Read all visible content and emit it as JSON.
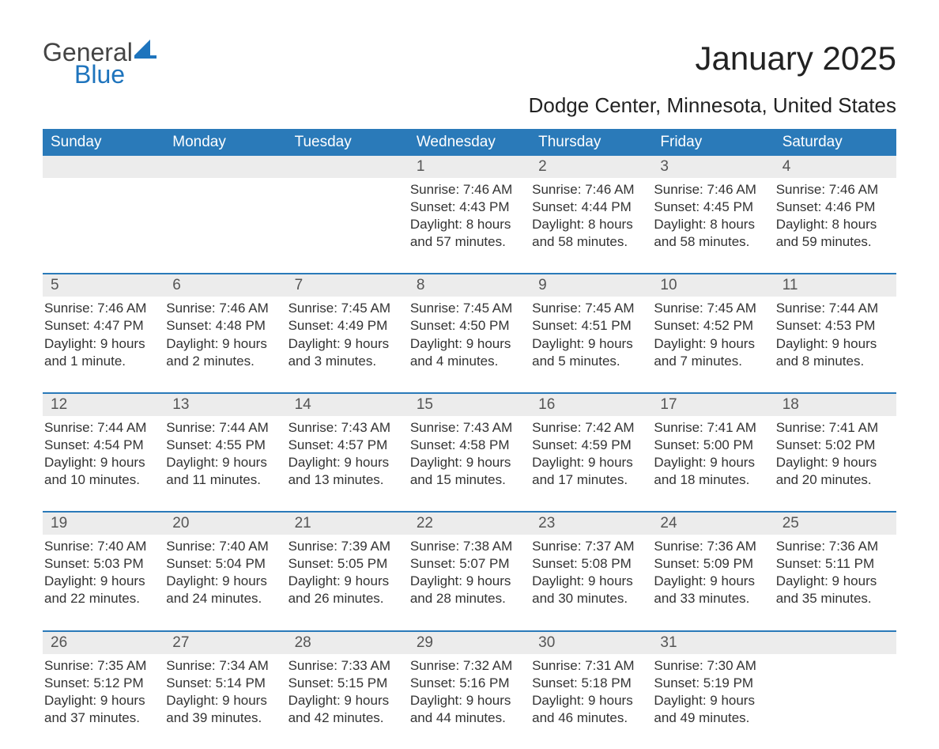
{
  "brand": {
    "word1": "General",
    "word2": "Blue",
    "color_general": "#444444",
    "color_blue": "#1e74bd",
    "shape_color": "#1e74bd"
  },
  "title": "January 2025",
  "location": "Dodge Center, Minnesota, United States",
  "colors": {
    "header_bg": "#2a7ab9",
    "header_text": "#ffffff",
    "daynum_bg": "#ececec",
    "daynum_text": "#555555",
    "body_text": "#333333",
    "rule": "#2a7ab9",
    "page_bg": "#ffffff"
  },
  "typography": {
    "title_fontsize": 42,
    "location_fontsize": 26,
    "header_fontsize": 19,
    "daynum_fontsize": 19,
    "body_fontsize": 17,
    "font_family": "Arial"
  },
  "day_headers": [
    "Sunday",
    "Monday",
    "Tuesday",
    "Wednesday",
    "Thursday",
    "Friday",
    "Saturday"
  ],
  "weeks": [
    [
      {
        "n": "",
        "sunrise": "",
        "sunset": "",
        "daylight": ""
      },
      {
        "n": "",
        "sunrise": "",
        "sunset": "",
        "daylight": ""
      },
      {
        "n": "",
        "sunrise": "",
        "sunset": "",
        "daylight": ""
      },
      {
        "n": "1",
        "sunrise": "Sunrise: 7:46 AM",
        "sunset": "Sunset: 4:43 PM",
        "daylight": "Daylight: 8 hours and 57 minutes."
      },
      {
        "n": "2",
        "sunrise": "Sunrise: 7:46 AM",
        "sunset": "Sunset: 4:44 PM",
        "daylight": "Daylight: 8 hours and 58 minutes."
      },
      {
        "n": "3",
        "sunrise": "Sunrise: 7:46 AM",
        "sunset": "Sunset: 4:45 PM",
        "daylight": "Daylight: 8 hours and 58 minutes."
      },
      {
        "n": "4",
        "sunrise": "Sunrise: 7:46 AM",
        "sunset": "Sunset: 4:46 PM",
        "daylight": "Daylight: 8 hours and 59 minutes."
      }
    ],
    [
      {
        "n": "5",
        "sunrise": "Sunrise: 7:46 AM",
        "sunset": "Sunset: 4:47 PM",
        "daylight": "Daylight: 9 hours and 1 minute."
      },
      {
        "n": "6",
        "sunrise": "Sunrise: 7:46 AM",
        "sunset": "Sunset: 4:48 PM",
        "daylight": "Daylight: 9 hours and 2 minutes."
      },
      {
        "n": "7",
        "sunrise": "Sunrise: 7:45 AM",
        "sunset": "Sunset: 4:49 PM",
        "daylight": "Daylight: 9 hours and 3 minutes."
      },
      {
        "n": "8",
        "sunrise": "Sunrise: 7:45 AM",
        "sunset": "Sunset: 4:50 PM",
        "daylight": "Daylight: 9 hours and 4 minutes."
      },
      {
        "n": "9",
        "sunrise": "Sunrise: 7:45 AM",
        "sunset": "Sunset: 4:51 PM",
        "daylight": "Daylight: 9 hours and 5 minutes."
      },
      {
        "n": "10",
        "sunrise": "Sunrise: 7:45 AM",
        "sunset": "Sunset: 4:52 PM",
        "daylight": "Daylight: 9 hours and 7 minutes."
      },
      {
        "n": "11",
        "sunrise": "Sunrise: 7:44 AM",
        "sunset": "Sunset: 4:53 PM",
        "daylight": "Daylight: 9 hours and 8 minutes."
      }
    ],
    [
      {
        "n": "12",
        "sunrise": "Sunrise: 7:44 AM",
        "sunset": "Sunset: 4:54 PM",
        "daylight": "Daylight: 9 hours and 10 minutes."
      },
      {
        "n": "13",
        "sunrise": "Sunrise: 7:44 AM",
        "sunset": "Sunset: 4:55 PM",
        "daylight": "Daylight: 9 hours and 11 minutes."
      },
      {
        "n": "14",
        "sunrise": "Sunrise: 7:43 AM",
        "sunset": "Sunset: 4:57 PM",
        "daylight": "Daylight: 9 hours and 13 minutes."
      },
      {
        "n": "15",
        "sunrise": "Sunrise: 7:43 AM",
        "sunset": "Sunset: 4:58 PM",
        "daylight": "Daylight: 9 hours and 15 minutes."
      },
      {
        "n": "16",
        "sunrise": "Sunrise: 7:42 AM",
        "sunset": "Sunset: 4:59 PM",
        "daylight": "Daylight: 9 hours and 17 minutes."
      },
      {
        "n": "17",
        "sunrise": "Sunrise: 7:41 AM",
        "sunset": "Sunset: 5:00 PM",
        "daylight": "Daylight: 9 hours and 18 minutes."
      },
      {
        "n": "18",
        "sunrise": "Sunrise: 7:41 AM",
        "sunset": "Sunset: 5:02 PM",
        "daylight": "Daylight: 9 hours and 20 minutes."
      }
    ],
    [
      {
        "n": "19",
        "sunrise": "Sunrise: 7:40 AM",
        "sunset": "Sunset: 5:03 PM",
        "daylight": "Daylight: 9 hours and 22 minutes."
      },
      {
        "n": "20",
        "sunrise": "Sunrise: 7:40 AM",
        "sunset": "Sunset: 5:04 PM",
        "daylight": "Daylight: 9 hours and 24 minutes."
      },
      {
        "n": "21",
        "sunrise": "Sunrise: 7:39 AM",
        "sunset": "Sunset: 5:05 PM",
        "daylight": "Daylight: 9 hours and 26 minutes."
      },
      {
        "n": "22",
        "sunrise": "Sunrise: 7:38 AM",
        "sunset": "Sunset: 5:07 PM",
        "daylight": "Daylight: 9 hours and 28 minutes."
      },
      {
        "n": "23",
        "sunrise": "Sunrise: 7:37 AM",
        "sunset": "Sunset: 5:08 PM",
        "daylight": "Daylight: 9 hours and 30 minutes."
      },
      {
        "n": "24",
        "sunrise": "Sunrise: 7:36 AM",
        "sunset": "Sunset: 5:09 PM",
        "daylight": "Daylight: 9 hours and 33 minutes."
      },
      {
        "n": "25",
        "sunrise": "Sunrise: 7:36 AM",
        "sunset": "Sunset: 5:11 PM",
        "daylight": "Daylight: 9 hours and 35 minutes."
      }
    ],
    [
      {
        "n": "26",
        "sunrise": "Sunrise: 7:35 AM",
        "sunset": "Sunset: 5:12 PM",
        "daylight": "Daylight: 9 hours and 37 minutes."
      },
      {
        "n": "27",
        "sunrise": "Sunrise: 7:34 AM",
        "sunset": "Sunset: 5:14 PM",
        "daylight": "Daylight: 9 hours and 39 minutes."
      },
      {
        "n": "28",
        "sunrise": "Sunrise: 7:33 AM",
        "sunset": "Sunset: 5:15 PM",
        "daylight": "Daylight: 9 hours and 42 minutes."
      },
      {
        "n": "29",
        "sunrise": "Sunrise: 7:32 AM",
        "sunset": "Sunset: 5:16 PM",
        "daylight": "Daylight: 9 hours and 44 minutes."
      },
      {
        "n": "30",
        "sunrise": "Sunrise: 7:31 AM",
        "sunset": "Sunset: 5:18 PM",
        "daylight": "Daylight: 9 hours and 46 minutes."
      },
      {
        "n": "31",
        "sunrise": "Sunrise: 7:30 AM",
        "sunset": "Sunset: 5:19 PM",
        "daylight": "Daylight: 9 hours and 49 minutes."
      },
      {
        "n": "",
        "sunrise": "",
        "sunset": "",
        "daylight": ""
      }
    ]
  ]
}
